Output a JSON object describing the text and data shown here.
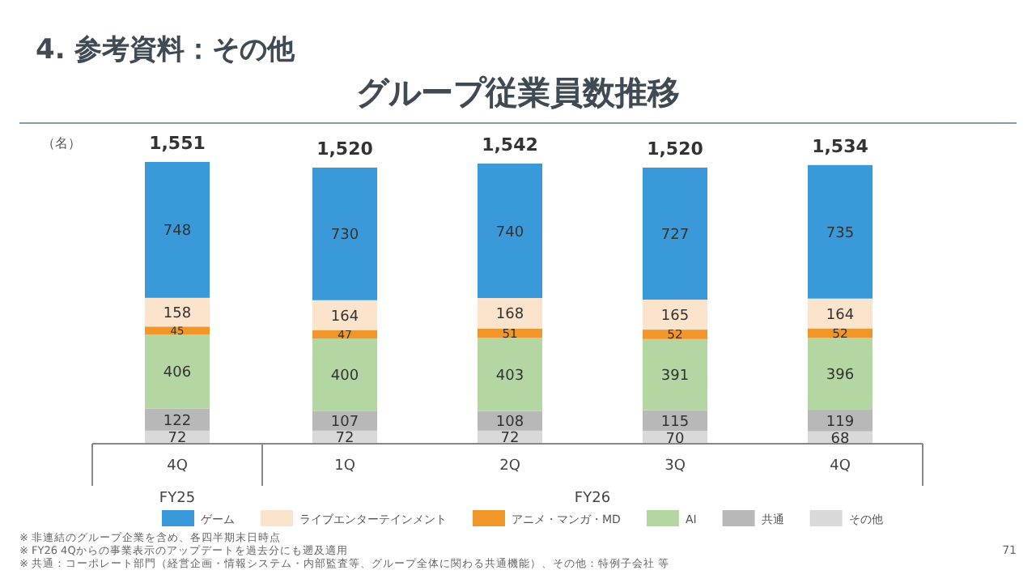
{
  "chart_data": {
    "type": "bar",
    "stacked": true,
    "data_labels": true,
    "legend": "bottom",
    "title": "4. 参考資料：その他",
    "subtitle": "グループ従業員数推移",
    "ylabel": "（名）",
    "categories": [
      "4Q",
      "1Q",
      "2Q",
      "3Q",
      "4Q"
    ],
    "series": [
      {
        "name": "その他",
        "color": "#d9d9d9",
        "values": [
          72,
          72,
          72,
          70,
          68
        ]
      },
      {
        "name": "共通",
        "color": "#b8b8b8",
        "values": [
          122,
          107,
          108,
          115,
          119
        ]
      },
      {
        "name": "AI",
        "color": "#b3d6a3",
        "values": [
          406,
          400,
          403,
          391,
          396
        ]
      },
      {
        "name": "アニメ・マンガ・MD",
        "color": "#f0962a",
        "values": [
          45,
          47,
          51,
          52,
          52
        ]
      },
      {
        "name": "ライブエンターテインメント",
        "color": "#fce4cc",
        "values": [
          158,
          164,
          168,
          165,
          164
        ]
      },
      {
        "name": "ゲーム",
        "color": "#3a9ad9",
        "values": [
          748,
          730,
          740,
          727,
          735
        ]
      }
    ],
    "totals": [
      "1,551",
      "1,520",
      "1,542",
      "1,520",
      "1,534"
    ],
    "annotations": [
      "FY25",
      "FY26",
      "※ 非連結のグループ企業を含め、各四半期末日時点",
      "※ FY26 4Qからの事業表示のアップデートを過去分にも遡及適用",
      "※ 共通：コーポレート部門（経営企画・情報システム・内部監査等、グループ全体に関わる共通機能）、その他：特例子会社 等",
      "71"
    ]
  }
}
